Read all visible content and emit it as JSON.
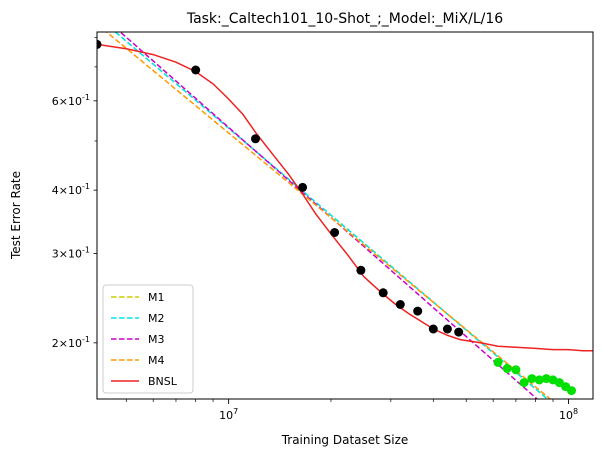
{
  "chart_data": {
    "type": "line",
    "title": "Task:_Caltech101_10-Shot_;_Model:_MiX/L/16",
    "xlabel": "Training Dataset Size",
    "ylabel": "Test Error Rate",
    "xscale": "log",
    "yscale": "log",
    "xlim": [
      4100000,
      118000000
    ],
    "ylim": [
      0.155,
      0.82
    ],
    "x_ticks": [
      {
        "value": 10000000,
        "label": "10^7"
      },
      {
        "value": 100000000,
        "label": "10^8"
      }
    ],
    "y_ticks": [
      {
        "value": 0.2,
        "label": "2×10^-1"
      },
      {
        "value": 0.3,
        "label": "3×10^-1"
      },
      {
        "value": 0.4,
        "label": "4×10^-1"
      },
      {
        "value": 0.6,
        "label": "6×10^-1"
      }
    ],
    "grid": false,
    "legend_position": "lower-left",
    "series": [
      {
        "name": "M1",
        "style": "dashed",
        "color": "#cccc00",
        "x": [
          4100000,
          118000000
        ],
        "y": [
          0.88,
          0.13
        ]
      },
      {
        "name": "M2",
        "style": "dashed",
        "color": "#00e5ee",
        "x": [
          4100000,
          118000000
        ],
        "y": [
          0.88,
          0.13
        ]
      },
      {
        "name": "M3",
        "style": "dashed",
        "color": "#cc00cc",
        "x": [
          4100000,
          118000000
        ],
        "y": [
          0.9,
          0.124
        ]
      },
      {
        "name": "M4",
        "style": "dashed",
        "color": "#ff9900",
        "x": [
          4100000,
          118000000
        ],
        "y": [
          0.85,
          0.132
        ]
      },
      {
        "name": "BNSL",
        "style": "solid",
        "color": "#ee2222",
        "x": [
          4100000,
          5000000,
          6000000,
          7000000,
          8000000,
          9000000,
          10000000,
          11000000,
          12000000,
          13500000,
          15000000,
          16500000,
          18000000,
          20000000,
          22500000,
          25000000,
          28000000,
          31000000,
          34000000,
          37000000,
          40000000,
          44000000,
          48000000,
          55000000,
          62000000,
          70000000,
          80000000,
          90000000,
          100000000,
          110000000,
          118000000
        ],
        "y": [
          0.775,
          0.76,
          0.74,
          0.715,
          0.685,
          0.648,
          0.605,
          0.565,
          0.52,
          0.47,
          0.43,
          0.393,
          0.36,
          0.328,
          0.297,
          0.27,
          0.252,
          0.238,
          0.228,
          0.22,
          0.213,
          0.207,
          0.203,
          0.2,
          0.197,
          0.196,
          0.195,
          0.194,
          0.194,
          0.193,
          0.193
        ]
      }
    ],
    "scatter_series": [
      {
        "role": "fit points",
        "color": "#000000",
        "x": [
          4100000,
          8000000,
          12000000,
          16500000,
          20500000,
          24500000,
          28500000,
          32000000,
          36000000,
          40000000,
          44000000,
          47500000
        ],
        "y": [
          0.775,
          0.69,
          0.505,
          0.405,
          0.33,
          0.278,
          0.251,
          0.238,
          0.231,
          0.213,
          0.213,
          0.21
        ]
      },
      {
        "role": "held-out points",
        "color": "#00e000",
        "x": [
          62000000,
          66000000,
          70000000,
          74000000,
          78000000,
          82000000,
          86000000,
          90000000,
          94000000,
          98000000,
          102000000
        ],
        "y": [
          0.183,
          0.178,
          0.177,
          0.167,
          0.17,
          0.169,
          0.17,
          0.169,
          0.167,
          0.164,
          0.161
        ]
      }
    ]
  }
}
